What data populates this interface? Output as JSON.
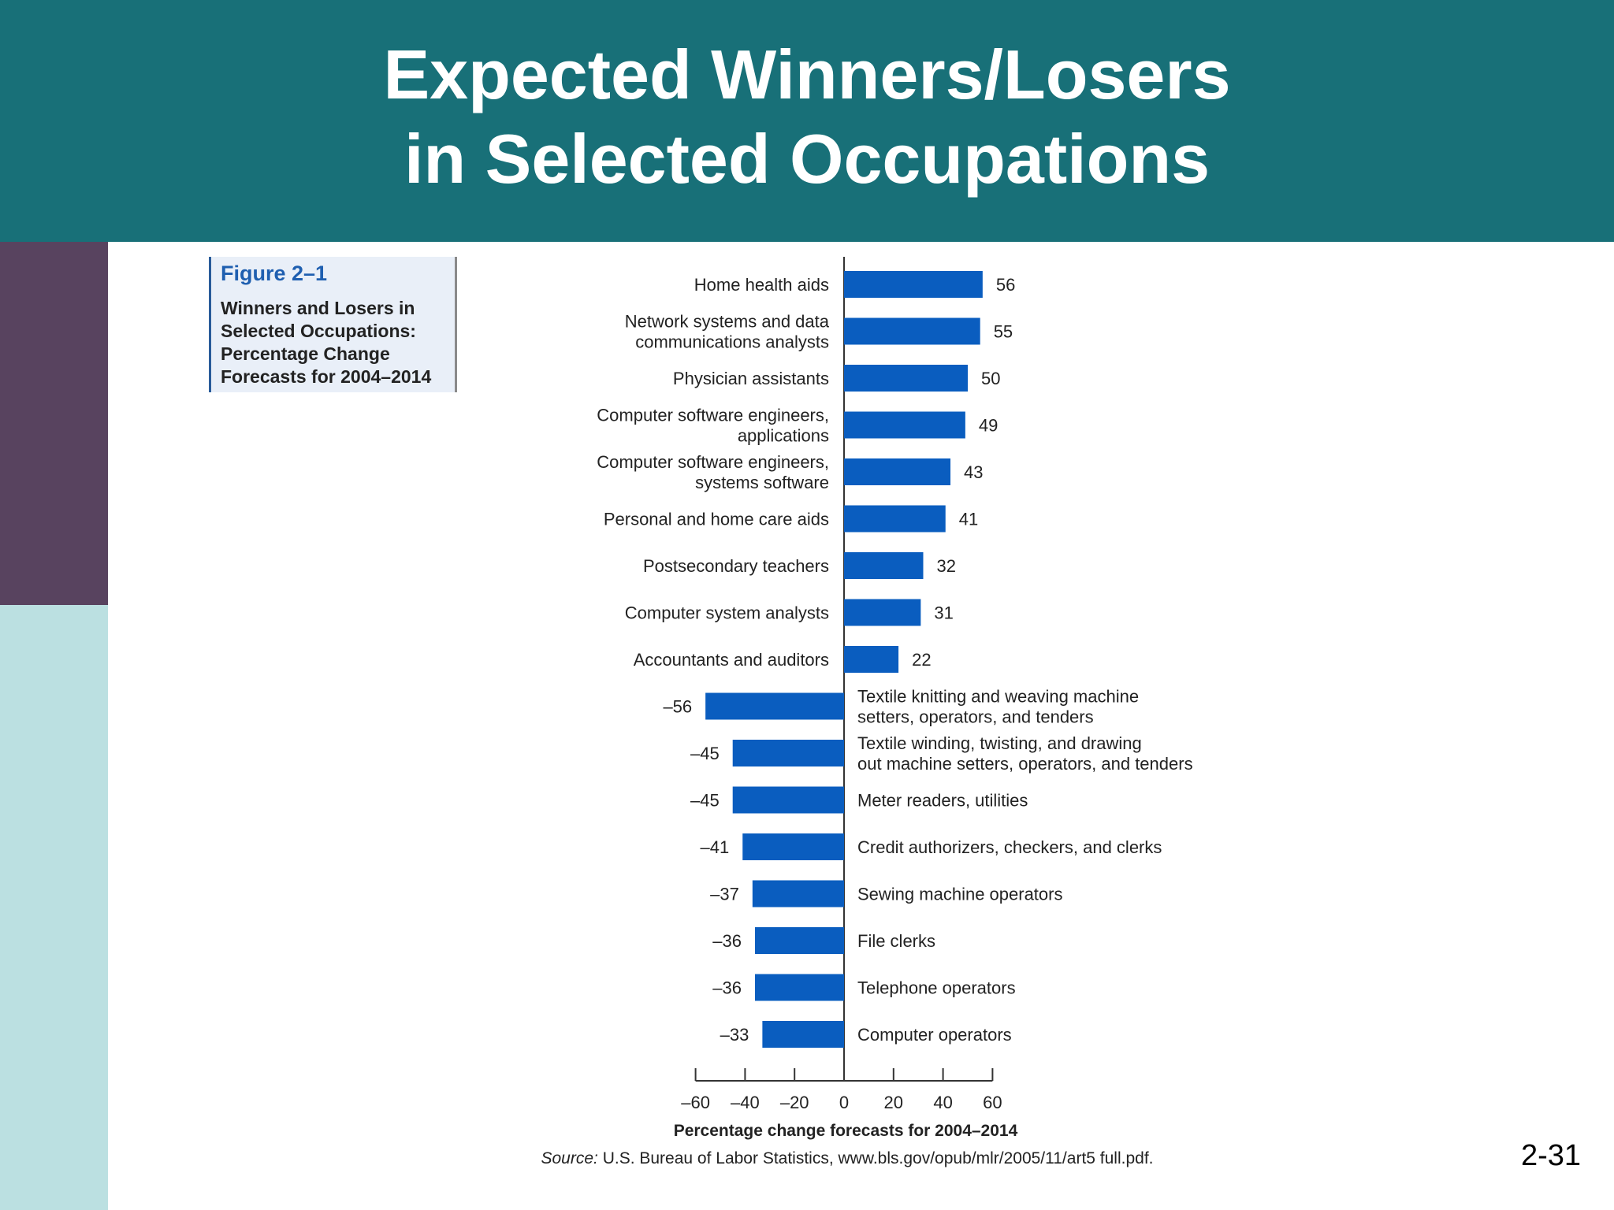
{
  "slide": {
    "title_line1": "Expected Winners/Losers",
    "title_line2": "in Selected Occupations",
    "page_number": "2-31",
    "colors": {
      "header": "#187078",
      "side_top": "#58435f",
      "side_bottom": "#bbe0e1",
      "bar": "#0a5dbf"
    }
  },
  "figure": {
    "label": "Figure 2–1",
    "caption_lines": [
      "Winners and Losers in",
      "Selected Occupations:",
      "Percentage Change",
      "Forecasts for 2004–2014"
    ]
  },
  "chart_data": {
    "type": "bar",
    "orientation": "horizontal",
    "categories": [
      [
        "Home health aids"
      ],
      [
        "Network systems and data",
        "communications analysts"
      ],
      [
        "Physician assistants"
      ],
      [
        "Computer software engineers,",
        "applications"
      ],
      [
        "Computer software engineers,",
        "systems software"
      ],
      [
        "Personal and home care aids"
      ],
      [
        "Postsecondary teachers"
      ],
      [
        "Computer system analysts"
      ],
      [
        "Accountants and auditors"
      ],
      [
        "Textile knitting and weaving machine",
        "setters, operators, and tenders"
      ],
      [
        "Textile winding, twisting, and drawing",
        "out machine setters, operators, and tenders"
      ],
      [
        "Meter readers, utilities"
      ],
      [
        "Credit authorizers, checkers, and clerks"
      ],
      [
        "Sewing machine operators"
      ],
      [
        "File clerks"
      ],
      [
        "Telephone operators"
      ],
      [
        "Computer operators"
      ]
    ],
    "values": [
      56,
      55,
      50,
      49,
      43,
      41,
      32,
      31,
      22,
      -56,
      -45,
      -45,
      -41,
      -37,
      -36,
      -36,
      -33
    ],
    "value_labels": [
      "56",
      "55",
      "50",
      "49",
      "43",
      "41",
      "32",
      "31",
      "22",
      "–56",
      "–45",
      "–45",
      "–41",
      "–37",
      "–36",
      "–36",
      "–33"
    ],
    "xlim": [
      -60,
      60
    ],
    "x_ticks": [
      -60,
      -40,
      -20,
      0,
      20,
      40,
      60
    ],
    "x_tick_labels": [
      "–60",
      "–40",
      "–20",
      "0",
      "20",
      "40",
      "60"
    ],
    "xlabel": "Percentage change forecasts for 2004–2014",
    "source_prefix": "Source:",
    "source_text": " U.S. Bureau of Labor Statistics, www.bls.gov/opub/mlr/2005/11/art5 full.pdf.",
    "grid": false,
    "legend": "none"
  }
}
